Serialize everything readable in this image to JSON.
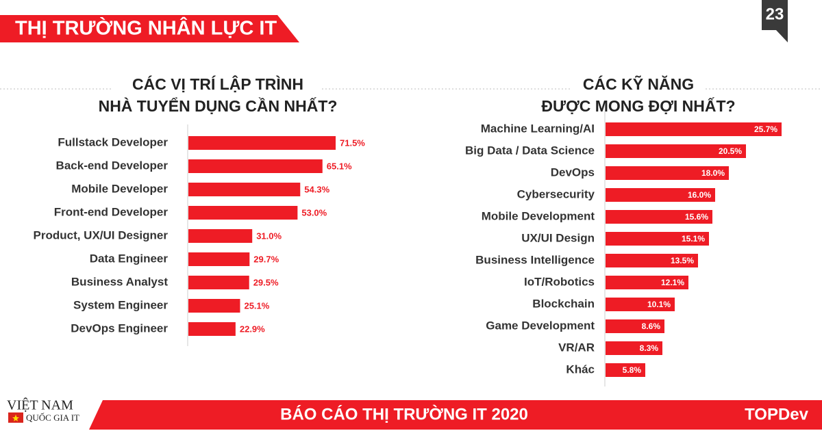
{
  "header": {
    "title": "THỊ TRƯỜNG NHÂN LỰC IT",
    "page_number": "23"
  },
  "footer": {
    "title": "BÁO CÁO THỊ TRƯỜNG IT 2020",
    "brand": "TOPDev",
    "logo_line1": "VIỆT NAM",
    "logo_line2": "QUỐC GIA IT"
  },
  "chart_data": [
    {
      "type": "bar",
      "orientation": "horizontal",
      "color": "#ee1c25",
      "title_lines": [
        "CÁC VỊ TRÍ LẬP TRÌNH",
        "NHÀ TUYỂN DỤNG CẦN NHẤT?"
      ],
      "categories": [
        "Fullstack Developer",
        "Back-end Developer",
        "Mobile Developer",
        "Front-end Developer",
        "Product, UX/UI Designer",
        "Data Engineer",
        "Business Analyst",
        "System Engineer",
        "DevOps Engineer"
      ],
      "values": [
        71.5,
        65.1,
        54.3,
        53.0,
        31.0,
        29.7,
        29.5,
        25.1,
        22.9
      ],
      "value_labels": [
        "71.5%",
        "65.1%",
        "54.3%",
        "53.0%",
        "31.0%",
        "29.7%",
        "29.5%",
        "25.1%",
        "22.9%"
      ]
    },
    {
      "type": "bar",
      "orientation": "horizontal",
      "color": "#ee1c25",
      "title_lines": [
        "CÁC KỸ NĂNG",
        "ĐƯỢC MONG ĐỢI NHẤT?"
      ],
      "categories": [
        "Machine Learning/AI",
        "Big Data / Data Science",
        "DevOps",
        "Cybersecurity",
        "Mobile Development",
        "UX/UI Design",
        "Business Intelligence",
        "IoT/Robotics",
        "Blockchain",
        "Game Development",
        "VR/AR",
        "Khác"
      ],
      "values": [
        25.7,
        20.5,
        18.0,
        16.0,
        15.6,
        15.1,
        13.5,
        12.1,
        10.1,
        8.6,
        8.3,
        5.8
      ],
      "value_labels": [
        "25.7%",
        "20.5%",
        "18.0%",
        "16.0%",
        "15.6%",
        "15.1%",
        "13.5%",
        "12.1%",
        "10.1%",
        "8.6%",
        "8.3%",
        "5.8%"
      ]
    }
  ]
}
